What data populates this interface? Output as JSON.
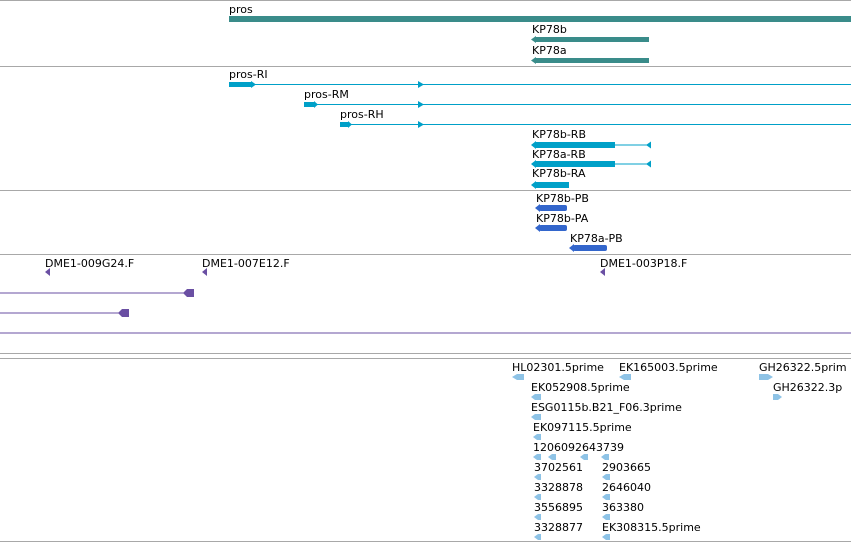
{
  "colors": {
    "gene": "#3a8c8a",
    "transcript": "#00a0c8",
    "protein": "#3366cc",
    "clone": "#6a4fa3",
    "est": "#8ec3e6",
    "separator": "#a8a8a8"
  },
  "genes": {
    "pros": "pros",
    "kp78b": "KP78b",
    "kp78a": "KP78a"
  },
  "transcripts": {
    "pros_ri": "pros-RI",
    "pros_rm": "pros-RM",
    "pros_rh": "pros-RH",
    "kp78b_rb": "KP78b-RB",
    "kp78a_rb": "KP78a-RB",
    "kp78b_ra": "KP78b-RA"
  },
  "proteins": {
    "kp78b_pb": "KP78b-PB",
    "kp78b_pa": "KP78b-PA",
    "kp78a_pb": "KP78a-PB"
  },
  "clones": {
    "c1": "DME1-009G24.F",
    "c2": "DME1-007E12.F",
    "c3": "DME1-003P18.F"
  },
  "ests": {
    "e1": "HL02301.5prime",
    "e2": "EK165003.5prime",
    "e3": "GH26322.5prim",
    "e4": "EK052908.5prime",
    "e5": "GH26322.3p",
    "e6": "ESG0115b.B21_F06.3prime",
    "e7": "EK097115.5prime",
    "e8": "1206092643739",
    "e9": "3702561",
    "e10": "2903665",
    "e11": "3328878",
    "e12": "2646040",
    "e13": "3556895",
    "e14": "363380",
    "e15": "3328877",
    "e16": "EK308315.5prime"
  }
}
